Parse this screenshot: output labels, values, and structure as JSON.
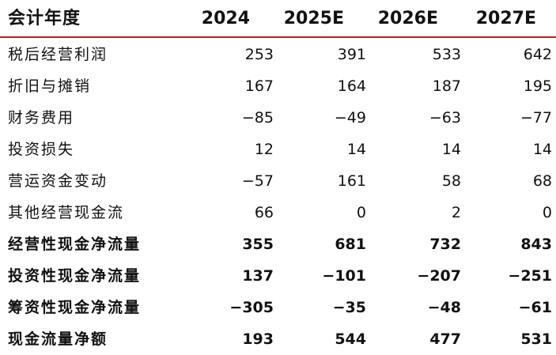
{
  "table": {
    "header": {
      "label": "会计年度",
      "years": [
        "2024",
        "2025E",
        "2026E",
        "2027E"
      ]
    },
    "rows": [
      {
        "label": "税后经营利润",
        "values": [
          "253",
          "391",
          "533",
          "642"
        ],
        "bold": false
      },
      {
        "label": "折旧与摊销",
        "values": [
          "167",
          "164",
          "187",
          "195"
        ],
        "bold": false
      },
      {
        "label": "财务费用",
        "values": [
          "−85",
          "−49",
          "−63",
          "−77"
        ],
        "bold": false
      },
      {
        "label": "投资损失",
        "values": [
          "12",
          "14",
          "14",
          "14"
        ],
        "bold": false
      },
      {
        "label": "营运资金变动",
        "values": [
          "−57",
          "161",
          "58",
          "68"
        ],
        "bold": false
      },
      {
        "label": "其他经营现金流",
        "values": [
          "66",
          "0",
          "2",
          "0"
        ],
        "bold": false
      },
      {
        "label": "经营性现金净流量",
        "values": [
          "355",
          "681",
          "732",
          "843"
        ],
        "bold": true
      },
      {
        "label": "投资性现金净流量",
        "values": [
          "137",
          "−101",
          "−207",
          "−251"
        ],
        "bold": true
      },
      {
        "label": "筹资性现金净流量",
        "values": [
          "−305",
          "−35",
          "−48",
          "−61"
        ],
        "bold": true
      },
      {
        "label": "现金流量净额",
        "values": [
          "193",
          "544",
          "477",
          "531"
        ],
        "bold": true
      }
    ],
    "colors": {
      "header_rule": "#b22222",
      "text": "#111111",
      "background": "#ffffff"
    }
  }
}
